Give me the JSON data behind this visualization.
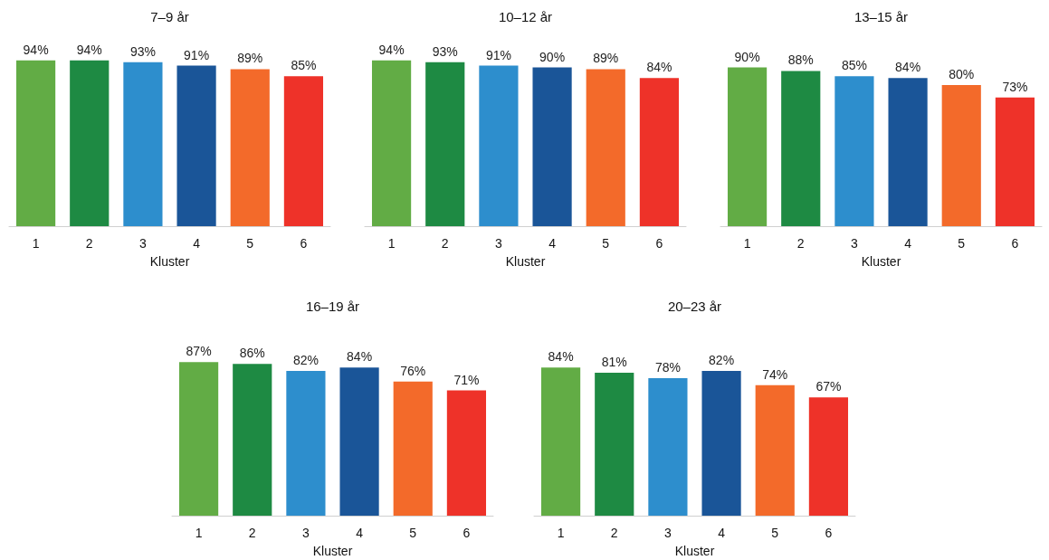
{
  "chart_data": [
    {
      "type": "bar",
      "title": "7–9 år",
      "xlabel": "Kluster",
      "categories": [
        "1",
        "2",
        "3",
        "4",
        "5",
        "6"
      ],
      "values": [
        94,
        94,
        93,
        91,
        89,
        85
      ],
      "value_labels": [
        "94%",
        "94%",
        "93%",
        "91%",
        "89%",
        "85%"
      ],
      "colors": [
        "#62ac45",
        "#1e8a43",
        "#2d8ecd",
        "#1a5598",
        "#f36a2a",
        "#ee3229"
      ]
    },
    {
      "type": "bar",
      "title": "10–12 år",
      "xlabel": "Kluster",
      "categories": [
        "1",
        "2",
        "3",
        "4",
        "5",
        "6"
      ],
      "values": [
        94,
        93,
        91,
        90,
        89,
        84
      ],
      "value_labels": [
        "94%",
        "93%",
        "91%",
        "90%",
        "89%",
        "84%"
      ],
      "colors": [
        "#62ac45",
        "#1e8a43",
        "#2d8ecd",
        "#1a5598",
        "#f36a2a",
        "#ee3229"
      ]
    },
    {
      "type": "bar",
      "title": "13–15 år",
      "xlabel": "Kluster",
      "categories": [
        "1",
        "2",
        "3",
        "4",
        "5",
        "6"
      ],
      "values": [
        90,
        88,
        85,
        84,
        80,
        73
      ],
      "value_labels": [
        "90%",
        "88%",
        "85%",
        "84%",
        "80%",
        "73%"
      ],
      "colors": [
        "#62ac45",
        "#1e8a43",
        "#2d8ecd",
        "#1a5598",
        "#f36a2a",
        "#ee3229"
      ]
    },
    {
      "type": "bar",
      "title": "16–19 år",
      "xlabel": "Kluster",
      "categories": [
        "1",
        "2",
        "3",
        "4",
        "5",
        "6"
      ],
      "values": [
        87,
        86,
        82,
        84,
        76,
        71
      ],
      "value_labels": [
        "87%",
        "86%",
        "82%",
        "84%",
        "76%",
        "71%"
      ],
      "colors": [
        "#62ac45",
        "#1e8a43",
        "#2d8ecd",
        "#1a5598",
        "#f36a2a",
        "#ee3229"
      ]
    },
    {
      "type": "bar",
      "title": "20–23 år",
      "xlabel": "Kluster",
      "categories": [
        "1",
        "2",
        "3",
        "4",
        "5",
        "6"
      ],
      "values": [
        84,
        81,
        78,
        82,
        74,
        67
      ],
      "value_labels": [
        "84%",
        "81%",
        "78%",
        "82%",
        "74%",
        "67%"
      ],
      "colors": [
        "#62ac45",
        "#1e8a43",
        "#2d8ecd",
        "#1a5598",
        "#f36a2a",
        "#ee3229"
      ]
    }
  ]
}
